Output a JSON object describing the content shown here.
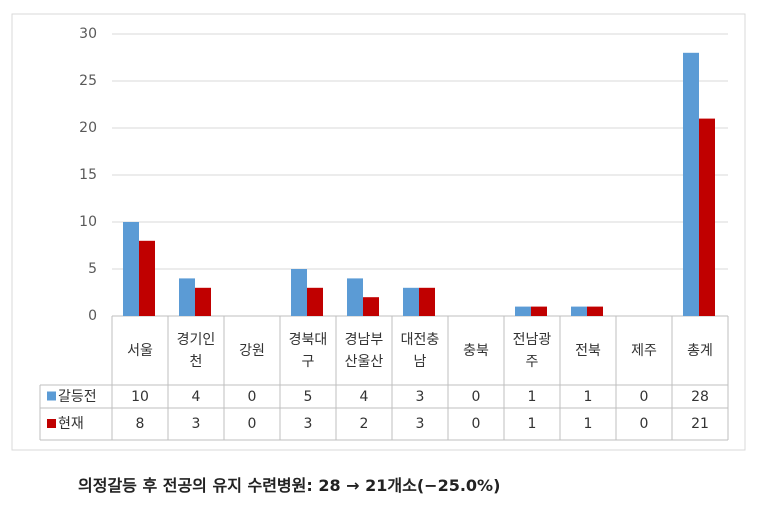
{
  "chart_data": {
    "type": "bar",
    "caption": "의정갈등 후 전공의 유지 수련병원: 28 → 21개소(−25.0%)",
    "categories": [
      "서울",
      "경기인천",
      "강원",
      "경북대구",
      "경남부산울산",
      "대전충남",
      "충북",
      "전남광주",
      "전북",
      "제주",
      "총계"
    ],
    "series": [
      {
        "name": "갈등전",
        "color": "#5b9bd5",
        "values": [
          10,
          4,
          0,
          5,
          4,
          3,
          0,
          1,
          1,
          0,
          28
        ]
      },
      {
        "name": "현재",
        "color": "#c00000",
        "values": [
          8,
          3,
          0,
          3,
          2,
          3,
          0,
          1,
          1,
          0,
          21
        ]
      }
    ],
    "ylim": [
      0,
      30
    ],
    "yticks": [
      0,
      5,
      10,
      15,
      20,
      25,
      30
    ],
    "grid": true
  }
}
